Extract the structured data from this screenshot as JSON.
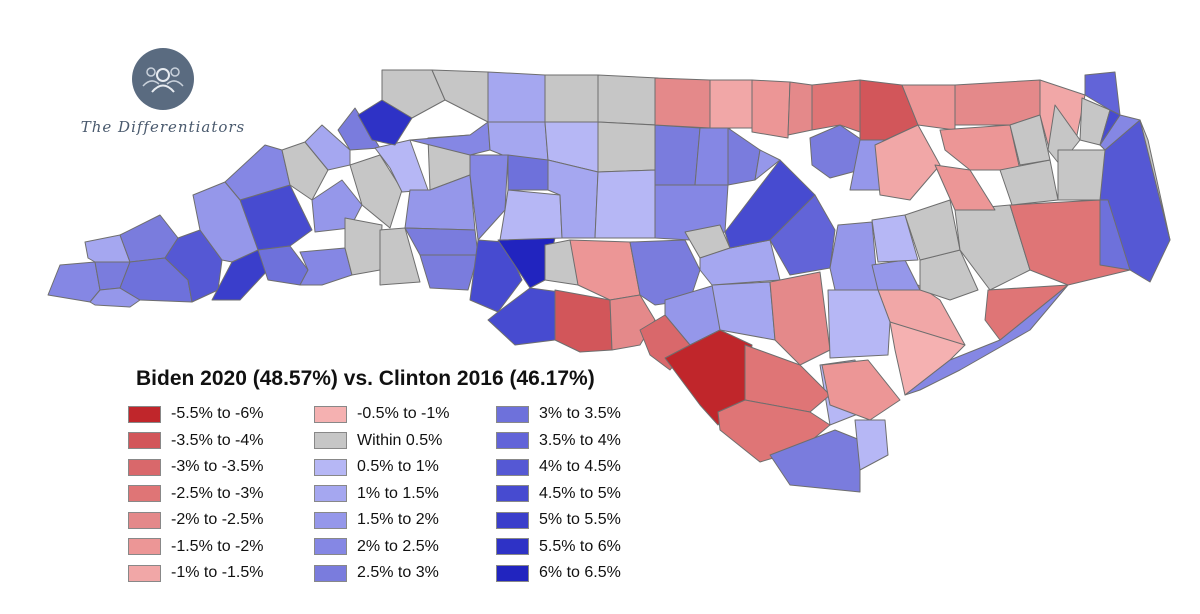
{
  "brand": {
    "name": "The Differentiators",
    "icon": "people-group-icon",
    "circle_color": "#5a6b80"
  },
  "legend": {
    "title": "Biden 2020 (48.57%) vs. Clinton 2016 (46.17%)",
    "columns": [
      [
        {
          "label": "-5.5% to -6%",
          "color": "#c0262b"
        },
        {
          "label": "-3.5% to -4%",
          "color": "#d2565a"
        },
        {
          "label": "-3% to -3.5%",
          "color": "#d9686b"
        },
        {
          "label": "-2.5% to -3%",
          "color": "#df7576"
        },
        {
          "label": "-2% to -2.5%",
          "color": "#e4898a"
        },
        {
          "label": "-1.5% to -2%",
          "color": "#ec9696"
        },
        {
          "label": "-1% to -1.5%",
          "color": "#f1a7a7"
        }
      ],
      [
        {
          "label": "-0.5% to -1%",
          "color": "#f5b1b1"
        },
        {
          "label": "Within 0.5%",
          "color": "#c6c6c6"
        },
        {
          "label": "0.5% to 1%",
          "color": "#b6b7f5"
        },
        {
          "label": "1% to 1.5%",
          "color": "#a5a7f0"
        },
        {
          "label": "1.5% to 2%",
          "color": "#9597ea"
        },
        {
          "label": "2% to 2.5%",
          "color": "#8587e4"
        },
        {
          "label": "2.5% to 3%",
          "color": "#7a7cdd"
        }
      ],
      [
        {
          "label": "3% to 3.5%",
          "color": "#6e71db"
        },
        {
          "label": "3.5% to 4%",
          "color": "#6264d8"
        },
        {
          "label": "4% to 4.5%",
          "color": "#5558d4"
        },
        {
          "label": "4.5% to 5%",
          "color": "#474bd0"
        },
        {
          "label": "5% to 5.5%",
          "color": "#3a3ecb"
        },
        {
          "label": "5.5% to 6%",
          "color": "#2e32c6"
        },
        {
          "label": "6% to 6.5%",
          "color": "#2124bf"
        }
      ]
    ]
  },
  "counties": [
    {
      "bin": "2% to 2.5%"
    },
    {
      "bin": "1% to 1.5%"
    },
    {
      "bin": "2.5% to 3%"
    },
    {
      "bin": "1.5% to 2%"
    },
    {
      "bin": "2.5% to 3%"
    },
    {
      "bin": "3% to 3.5%"
    },
    {
      "bin": "4% to 4.5%"
    },
    {
      "bin": "5% to 5.5%"
    },
    {
      "bin": "4.5% to 5%"
    },
    {
      "bin": "3% to 3.5%"
    },
    {
      "bin": "2% to 2.5%"
    },
    {
      "bin": "1.5% to 2%"
    },
    {
      "bin": "2% to 2.5%"
    },
    {
      "bin": "Within 0.5%"
    },
    {
      "bin": "1.5% to 2%"
    },
    {
      "bin": "Within 0.5%"
    },
    {
      "bin": "1% to 1.5%"
    },
    {
      "bin": "2.5% to 3%"
    },
    {
      "bin": "0.5% to 1%"
    },
    {
      "bin": "Within 0.5%"
    },
    {
      "bin": "5.5% to 6%"
    },
    {
      "bin": "Within 0.5%"
    },
    {
      "bin": "Within 0.5%"
    },
    {
      "bin": "1% to 1.5%"
    },
    {
      "bin": "2% to 2.5%"
    },
    {
      "bin": "Within 0.5%"
    },
    {
      "bin": "1.5% to 2%"
    },
    {
      "bin": "Within 0.5%"
    },
    {
      "bin": "1% to 1.5%"
    },
    {
      "bin": "Within 0.5%"
    },
    {
      "bin": "2.5% to 3%"
    },
    {
      "bin": "2.5% to 3%"
    },
    {
      "bin": "2% to 2.5%"
    },
    {
      "bin": "4.5% to 5%"
    },
    {
      "bin": "6% to 6.5%"
    },
    {
      "bin": "Within 0.5%"
    },
    {
      "bin": "4.5% to 5%"
    },
    {
      "bin": "0.5% to 1%"
    },
    {
      "bin": "Within 0.5%"
    },
    {
      "bin": "Within 0.5%"
    },
    {
      "bin": "0.5% to 1%"
    },
    {
      "bin": "3% to 3.5%"
    },
    {
      "bin": "2.5% to 3%"
    },
    {
      "bin": "1% to 1.5%"
    },
    {
      "bin": "0.5% to 1%"
    },
    {
      "bin": "2% to 2.5%"
    },
    {
      "bin": "2.5% to 3%"
    },
    {
      "bin": "2% to 2.5%"
    },
    {
      "bin": "-2% to -2.5%"
    },
    {
      "bin": "-3.5% to -4%"
    },
    {
      "bin": "-1.5% to -2%"
    },
    {
      "bin": "-2% to -2.5%"
    },
    {
      "bin": "Within 0.5%"
    },
    {
      "bin": "2.5% to 3%"
    },
    {
      "bin": "1.5% to 2%"
    },
    {
      "bin": "1% to 1.5%"
    },
    {
      "bin": "1% to 1.5%"
    },
    {
      "bin": "4.5% to 5%"
    },
    {
      "bin": "1.5% to 2%"
    },
    {
      "bin": "3.5% to 4%"
    },
    {
      "bin": "-3% to -3.5%"
    },
    {
      "bin": "-5.5% to -6%"
    },
    {
      "bin": "-2% to -2.5%"
    },
    {
      "bin": "1.5% to 2%"
    },
    {
      "bin": "0.5% to 1%"
    },
    {
      "bin": "-2.5% to -3%"
    },
    {
      "bin": "-1% to -1.5%"
    },
    {
      "bin": "-1.5% to -2%"
    },
    {
      "bin": "-2% to -2.5%"
    },
    {
      "bin": "-2.5% to -3%"
    },
    {
      "bin": "2.5% to 3%"
    },
    {
      "bin": "0.5% to 1%"
    },
    {
      "bin": "-1.5% to -2%"
    },
    {
      "bin": "-1% to -1.5%"
    },
    {
      "bin": "0.5% to 1%"
    },
    {
      "bin": "-0.5% to -1%"
    },
    {
      "bin": "2% to 2.5%"
    },
    {
      "bin": "1.5% to 2%"
    },
    {
      "bin": "2.5% to 3%"
    },
    {
      "bin": "1.5% to 2%"
    },
    {
      "bin": "0.5% to 1%"
    },
    {
      "bin": "Within 0.5%"
    },
    {
      "bin": "Within 0.5%"
    },
    {
      "bin": "Within 0.5%"
    },
    {
      "bin": "-2.5% to -3%"
    },
    {
      "bin": "-2.5% to -3%"
    },
    {
      "bin": "-3.5% to -4%"
    },
    {
      "bin": "-1.5% to -2%"
    },
    {
      "bin": "-2.5% to -3%"
    },
    {
      "bin": "-1% to -1.5%"
    },
    {
      "bin": "-1.5% to -2%"
    },
    {
      "bin": "-1.5% to -2%"
    },
    {
      "bin": "-2% to -2.5%"
    },
    {
      "bin": "Within 0.5%"
    },
    {
      "bin": "-1% to -1.5%"
    },
    {
      "bin": "Within 0.5%"
    },
    {
      "bin": "Within 0.5%"
    },
    {
      "bin": "Within 0.5%"
    },
    {
      "bin": "3.5% to 4%"
    },
    {
      "bin": "Within 0.5%"
    },
    {
      "bin": "4% to 4.5%"
    },
    {
      "bin": "2% to 2.5%"
    },
    {
      "bin": "4.5% to 5%"
    },
    {
      "bin": "Within 0.5%"
    },
    {
      "bin": "3% to 3.5%"
    },
    {
      "bin": "1% to 1.5%"
    },
    {
      "bin": "Within 0.5%"
    },
    {
      "bin": "Within 0.5%"
    }
  ]
}
